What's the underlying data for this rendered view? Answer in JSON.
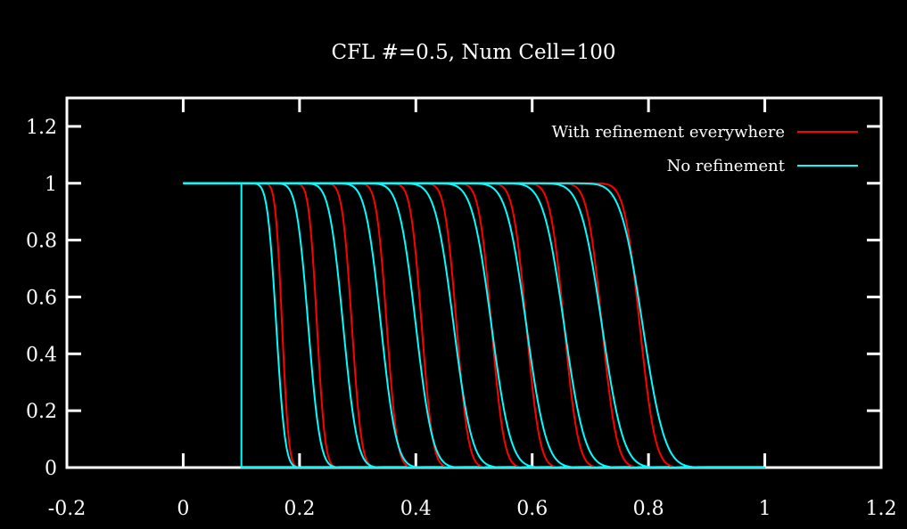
{
  "chart_data": {
    "type": "line",
    "title": "CFL #=0.5, Num Cell=100",
    "xlabel": "",
    "ylabel": "",
    "xlim": [
      -0.2,
      1.2
    ],
    "ylim": [
      0,
      1.3
    ],
    "x_ticks": [
      "-0.2",
      "0",
      "0.2",
      "0.4",
      "0.6",
      "0.8",
      "1",
      "1.2"
    ],
    "y_ticks": [
      "0",
      "0.2",
      "0.4",
      "0.6",
      "0.8",
      "1",
      "1.2"
    ],
    "grid": false,
    "legend_position": "top-right",
    "background": "#000000",
    "axis_color": "#ffffff",
    "series": [
      {
        "name": "With refinement everywhere",
        "color": "#ff0000",
        "x_start": 0.0,
        "x_end": 1.0,
        "profiles": [
          {
            "front": 0.17,
            "width": 0.009
          },
          {
            "front": 0.23,
            "width": 0.011
          },
          {
            "front": 0.29,
            "width": 0.013
          },
          {
            "front": 0.35,
            "width": 0.014
          },
          {
            "front": 0.41,
            "width": 0.015
          },
          {
            "front": 0.47,
            "width": 0.016
          },
          {
            "front": 0.53,
            "width": 0.017
          },
          {
            "front": 0.59,
            "width": 0.018
          },
          {
            "front": 0.655,
            "width": 0.019
          },
          {
            "front": 0.72,
            "width": 0.02
          },
          {
            "front": 0.785,
            "width": 0.021
          }
        ]
      },
      {
        "name": "No refinement",
        "color": "#00ffff",
        "x_start": 0.0,
        "x_end": 1.0,
        "initial_step": {
          "x": 0.1,
          "top_from": 0.0,
          "bottom_to": 1.0
        },
        "profiles": [
          {
            "front": 0.16,
            "width": 0.012
          },
          {
            "front": 0.215,
            "width": 0.016
          },
          {
            "front": 0.275,
            "width": 0.019
          },
          {
            "front": 0.34,
            "width": 0.021
          },
          {
            "front": 0.4,
            "width": 0.023
          },
          {
            "front": 0.465,
            "width": 0.025
          },
          {
            "front": 0.53,
            "width": 0.026
          },
          {
            "front": 0.59,
            "width": 0.027
          },
          {
            "front": 0.655,
            "width": 0.028
          },
          {
            "front": 0.72,
            "width": 0.029
          },
          {
            "front": 0.79,
            "width": 0.03
          }
        ]
      }
    ]
  }
}
